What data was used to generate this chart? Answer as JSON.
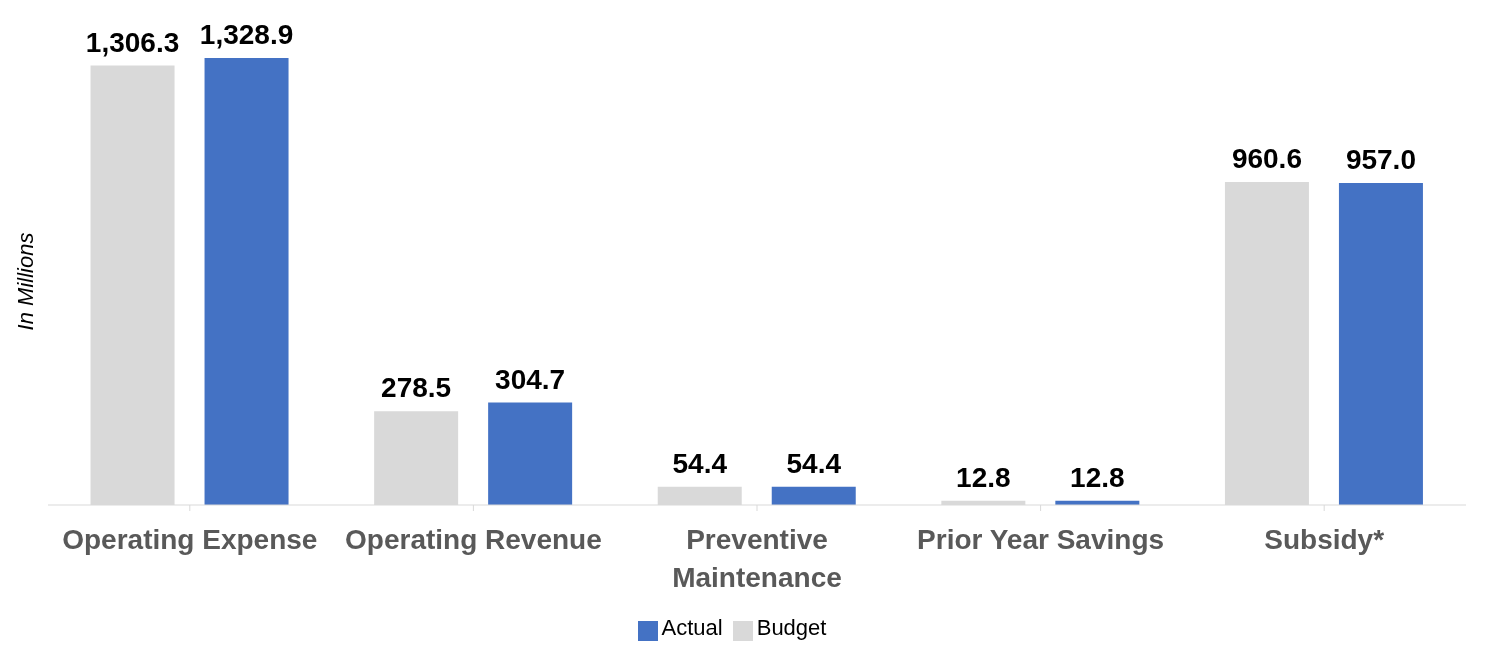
{
  "chart_data": {
    "type": "bar",
    "ylabel": "In Millions",
    "categories": [
      "Operating Expense",
      "Operating Revenue",
      "Preventive Maintenance",
      "Prior Year Savings",
      "Subsidy*"
    ],
    "series": [
      {
        "name": "Budget",
        "color": "#d9d9d9",
        "values": [
          1306.3,
          278.5,
          54.4,
          12.8,
          960.6
        ],
        "value_labels": [
          "1,306.3",
          "278.5",
          "54.4",
          "12.8",
          "960.6"
        ]
      },
      {
        "name": "Actual",
        "color": "#4472c4",
        "values": [
          1328.9,
          304.7,
          54.4,
          12.8,
          957.0
        ],
        "value_labels": [
          "1,328.9",
          "304.7",
          "54.4",
          "12.8",
          "957.0"
        ]
      }
    ],
    "legend": "bottom",
    "grid": false
  }
}
